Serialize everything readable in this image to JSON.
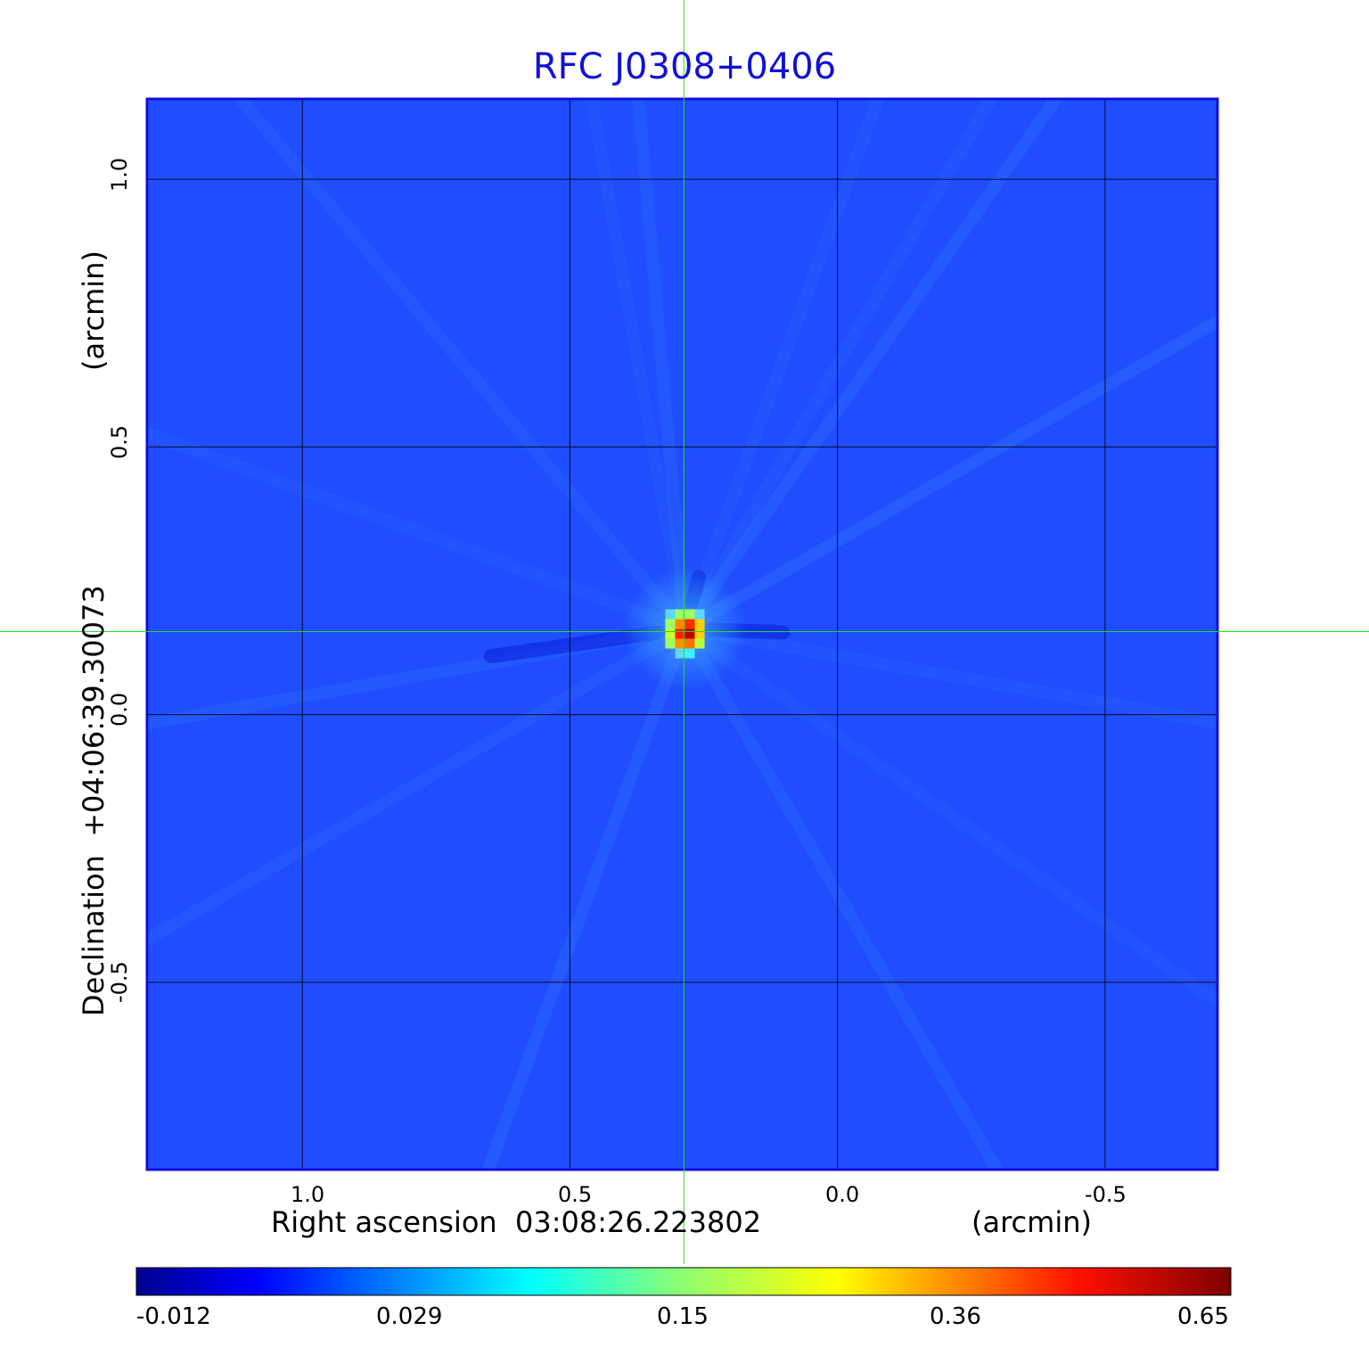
{
  "chart_data": {
    "type": "heatmap",
    "title": "RFC J0308+0406",
    "xlabel": "Right ascension  03:08:26.223802",
    "xunit": "(arcmin)",
    "ylabel": "Declination  +04:06:39.30073",
    "yunit": "(arcmin)",
    "x_ticks": [
      "1.0",
      "0.5",
      "0.0",
      "-0.5"
    ],
    "y_ticks": [
      "1.0",
      "0.5",
      "0.0",
      "-0.5"
    ],
    "xlim": [
      1.29,
      -0.71
    ],
    "ylim": [
      -0.85,
      1.15
    ],
    "grid": true,
    "crosshair": {
      "x": 0.287,
      "y": 0.155
    },
    "peak": {
      "x": 0.285,
      "y": 0.16,
      "value": 0.65
    },
    "colorbar": {
      "colormap": "jet",
      "ticks": [
        "-0.012",
        "0.029",
        "0.15",
        "0.36",
        "0.65"
      ],
      "range": [
        -0.012,
        0.65
      ]
    }
  },
  "colors": {
    "title": "#1010d8",
    "background": "#1f4dff",
    "grid": "#000000",
    "crosshair": "#22dd22",
    "frame": "#1010d8"
  }
}
